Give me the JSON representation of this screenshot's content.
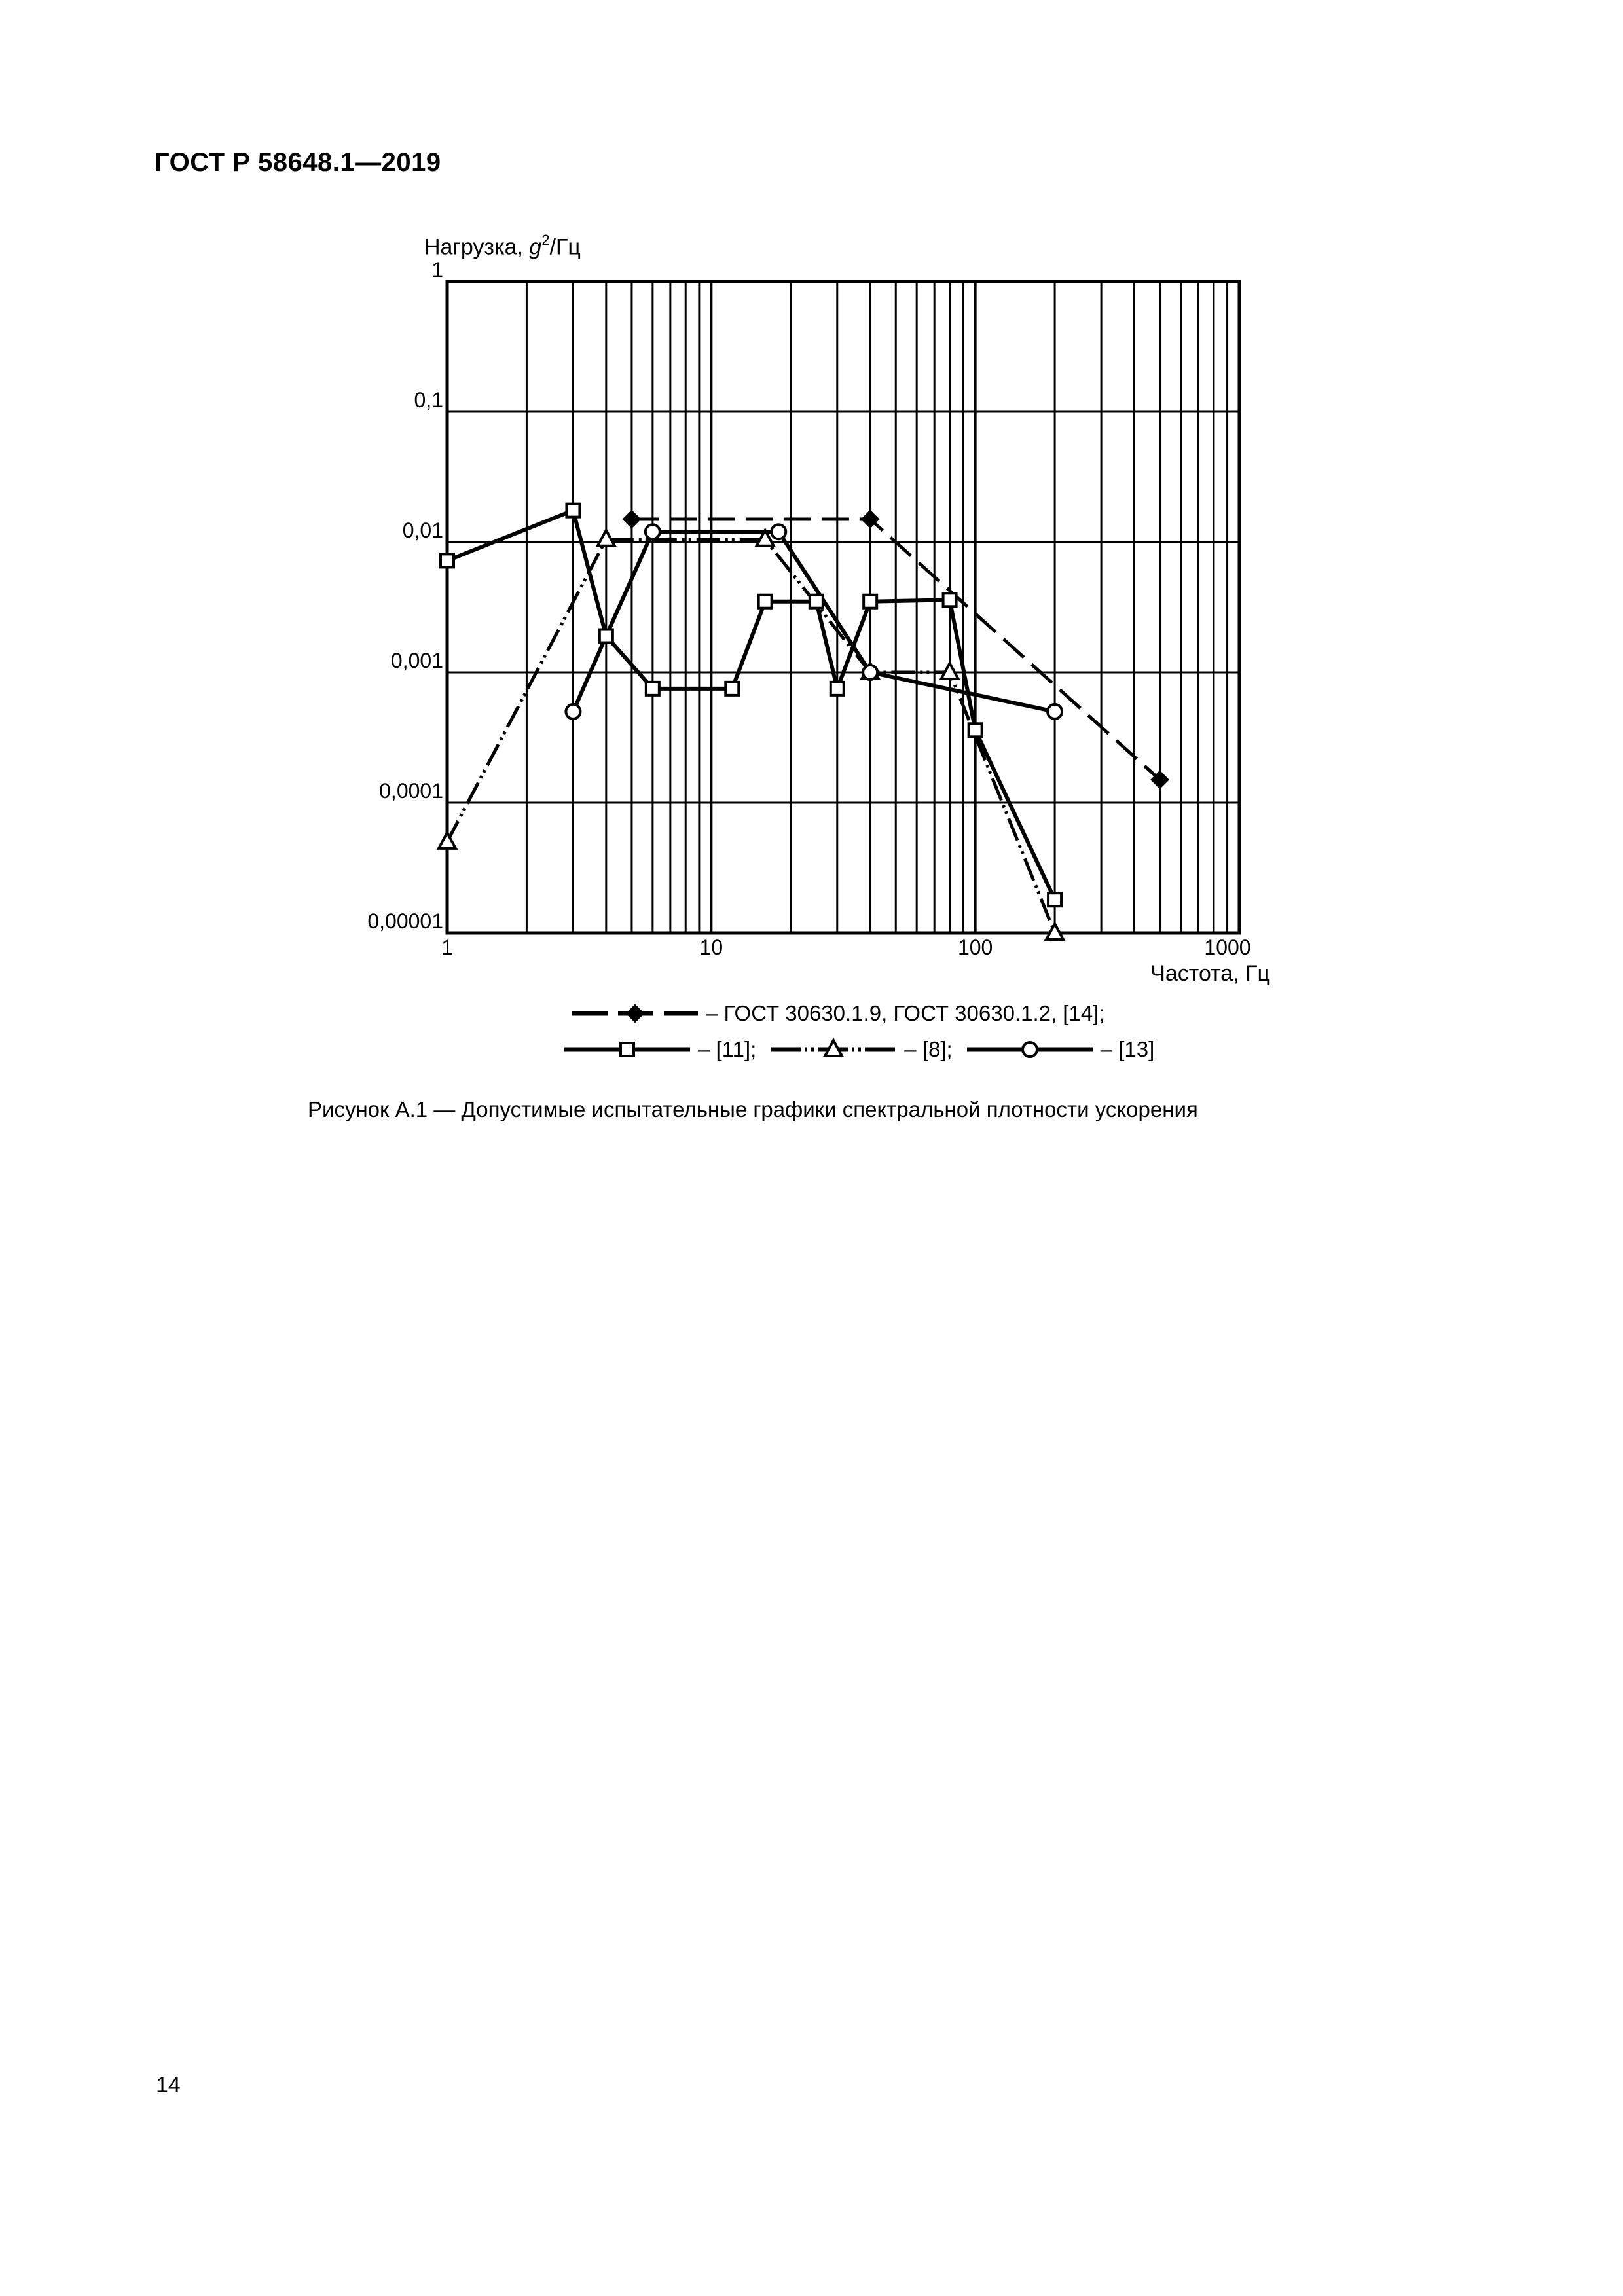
{
  "document": {
    "header": "ГОСТ Р 58648.1—2019",
    "page_number": "14",
    "caption": "Рисунок А.1 — Допустимые испытательные графики спектральной плотности ускорения"
  },
  "axes": {
    "ylabel_prefix": "Нагрузка, ",
    "ylabel_var": "g",
    "ylabel_sup": "2",
    "ylabel_suffix": "/Гц",
    "xlabel": "Частота, Гц",
    "yticks": [
      "1",
      "0,1",
      "0,01",
      "0,001",
      "0,0001",
      "0,00001"
    ],
    "xticks": [
      "1",
      "10",
      "100",
      "1000"
    ]
  },
  "legend": {
    "row1": [
      {
        "marker": "diamond-filled",
        "style": "dashed",
        "label": "– ГОСТ 30630.1.9, ГОСТ 30630.1.2, [14];"
      }
    ],
    "row2": [
      {
        "marker": "square-open",
        "style": "solid",
        "label": "– [11];"
      },
      {
        "marker": "triangle-open",
        "style": "dash-dot-dot",
        "label": "– [8];"
      },
      {
        "marker": "circle-open",
        "style": "solid",
        "label": "– [13]"
      }
    ]
  },
  "colors": {
    "ink": "#000000",
    "paper": "#ffffff"
  },
  "chart_data": {
    "type": "line",
    "title": "",
    "xlabel": "Частота, Гц",
    "ylabel": "Нагрузка, g²/Гц",
    "xscale": "log",
    "yscale": "log",
    "xlim": [
      1,
      1000
    ],
    "ylim": [
      1e-05,
      1
    ],
    "grid": true,
    "legend_position": "below",
    "x_tick_labels": [
      "1",
      "10",
      "100",
      "1000"
    ],
    "y_tick_labels": [
      "1",
      "0,1",
      "0,01",
      "0,001",
      "0,0001",
      "0,00001"
    ],
    "series": [
      {
        "name": "ГОСТ 30630.1.9, ГОСТ 30630.1.2, [14]",
        "marker": "diamond-filled",
        "line": "dashed",
        "x": [
          5,
          40,
          500
        ],
        "y": [
          0.015,
          0.015,
          0.00015
        ]
      },
      {
        "name": "[11]",
        "marker": "square-open",
        "line": "solid",
        "x": [
          1,
          3,
          4,
          6,
          12,
          16,
          25,
          30,
          40,
          80,
          100,
          200
        ],
        "y": [
          0.0072,
          0.0175,
          0.0019,
          0.00075,
          0.00075,
          0.0035,
          0.0035,
          0.00075,
          0.0035,
          0.0036,
          0.00036,
          1.8e-05
        ]
      },
      {
        "name": "[8]",
        "marker": "triangle-open",
        "line": "dash-dot-dot",
        "x": [
          1,
          4,
          16,
          40,
          80,
          200
        ],
        "y": [
          5e-05,
          0.0105,
          0.0105,
          0.001,
          0.001,
          1e-05
        ]
      },
      {
        "name": "[13]",
        "marker": "circle-open",
        "line": "solid",
        "x": [
          3,
          4,
          6,
          18,
          40,
          200
        ],
        "y": [
          0.0005,
          0.0019,
          0.012,
          0.012,
          0.001,
          0.0005
        ],
        "hidden_marker_indices": [
          1
        ]
      }
    ]
  }
}
